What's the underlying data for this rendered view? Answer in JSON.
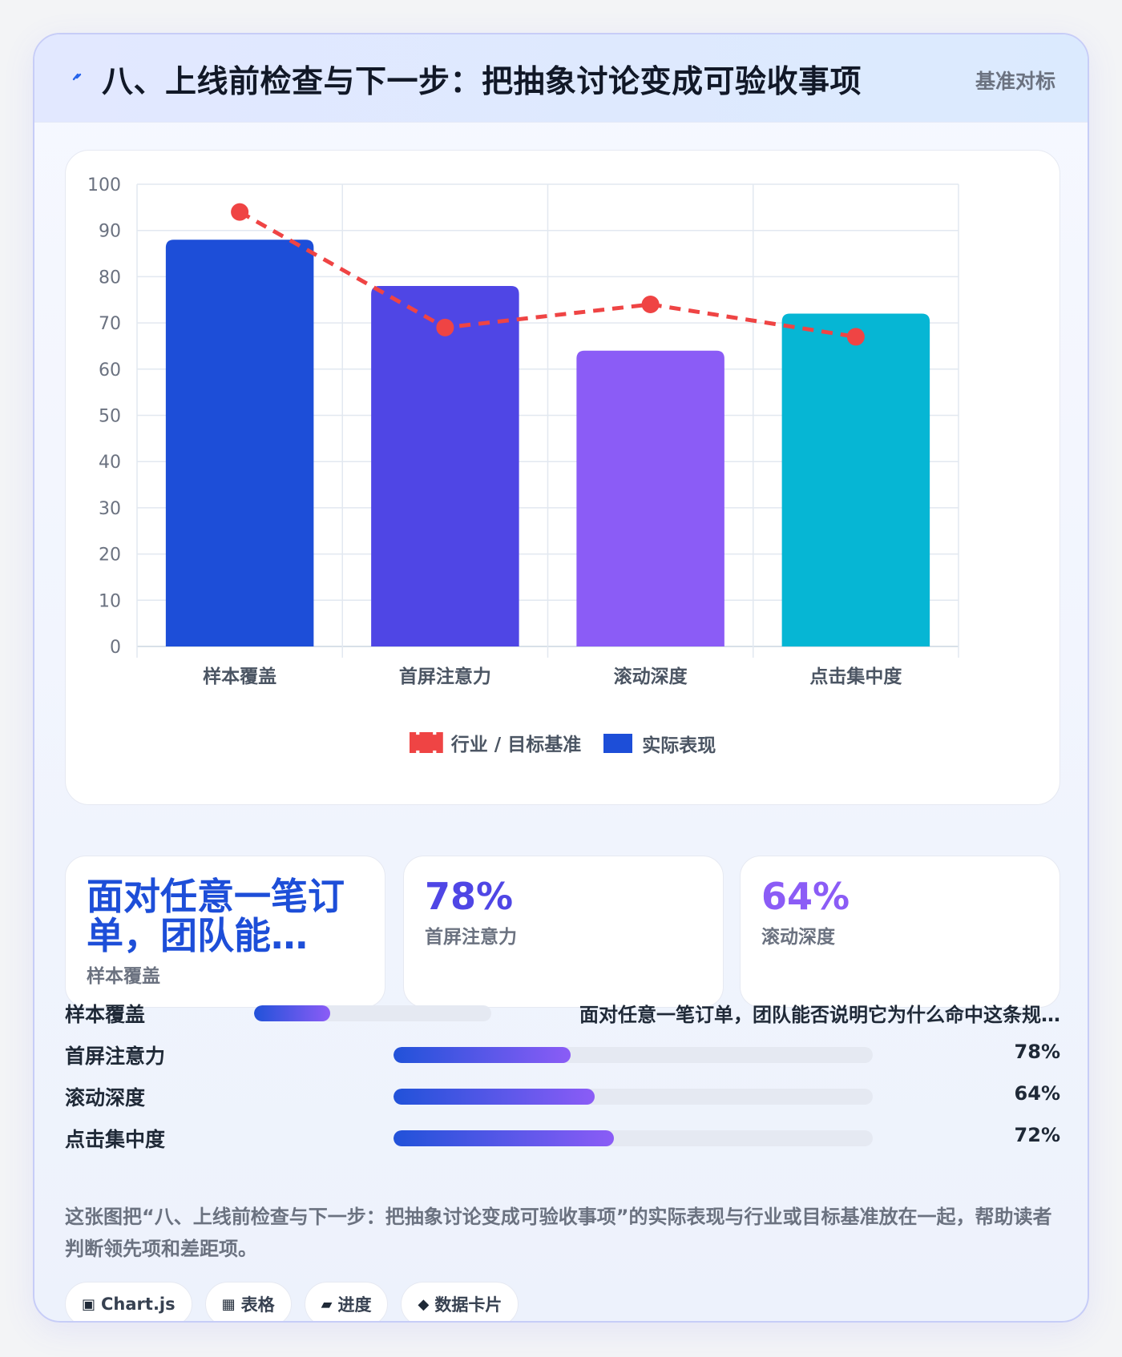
{
  "header": {
    "icon": "lightning-icon",
    "title": "八、上线前检查与下一步：把抽象讨论变成可验收事项",
    "tag": "基准对标"
  },
  "chart_data": {
    "type": "bar",
    "categories": [
      "样本覆盖",
      "首屏注意力",
      "滚动深度",
      "点击集中度"
    ],
    "series": [
      {
        "name": "实际表现",
        "type": "bar",
        "values": [
          88,
          78,
          64,
          72
        ],
        "colors": [
          "#1d4ed8",
          "#4f46e5",
          "#8b5cf6",
          "#06b6d4"
        ]
      },
      {
        "name": "行业 / 目标基准",
        "type": "line",
        "style": "dashed",
        "values": [
          94,
          69,
          74,
          67
        ],
        "color": "#ef4444"
      }
    ],
    "ylim": [
      0,
      100
    ],
    "yticks": [
      0,
      10,
      20,
      30,
      40,
      50,
      60,
      70,
      80,
      90,
      100
    ],
    "grid": true,
    "legend": "bottom",
    "legend_order": [
      "行业 / 目标基准",
      "实际表现"
    ]
  },
  "kpis": [
    {
      "value": "面对任意一笔订单，团队能…",
      "label": "样本覆盖"
    },
    {
      "value": "78%",
      "label": "首屏注意力"
    },
    {
      "value": "64%",
      "label": "滚动深度"
    }
  ],
  "progress": [
    {
      "label": "样本覆盖",
      "value": "面对任意一笔订单，团队能否说明它为什么命中这条规…",
      "fill": 0.32
    },
    {
      "label": "首屏注意力",
      "value": "78%",
      "fill": 0.37
    },
    {
      "label": "滚动深度",
      "value": "64%",
      "fill": 0.42
    },
    {
      "label": "点击集中度",
      "value": "72%",
      "fill": 0.46
    }
  ],
  "description": "这张图把“八、上线前检查与下一步：把抽象讨论变成可验收事项”的实际表现与行业或目标基准放在一起，帮助读者判断领先项和差距项。",
  "chips": [
    {
      "icon": "▣",
      "icon_name": "chart-icon",
      "label": "Chart.js"
    },
    {
      "icon": "▦",
      "icon_name": "table-icon",
      "label": "表格"
    },
    {
      "icon": "▰",
      "icon_name": "progress-icon",
      "label": "进度"
    },
    {
      "icon": "◆",
      "icon_name": "data-card-icon",
      "label": "数据卡片"
    }
  ]
}
